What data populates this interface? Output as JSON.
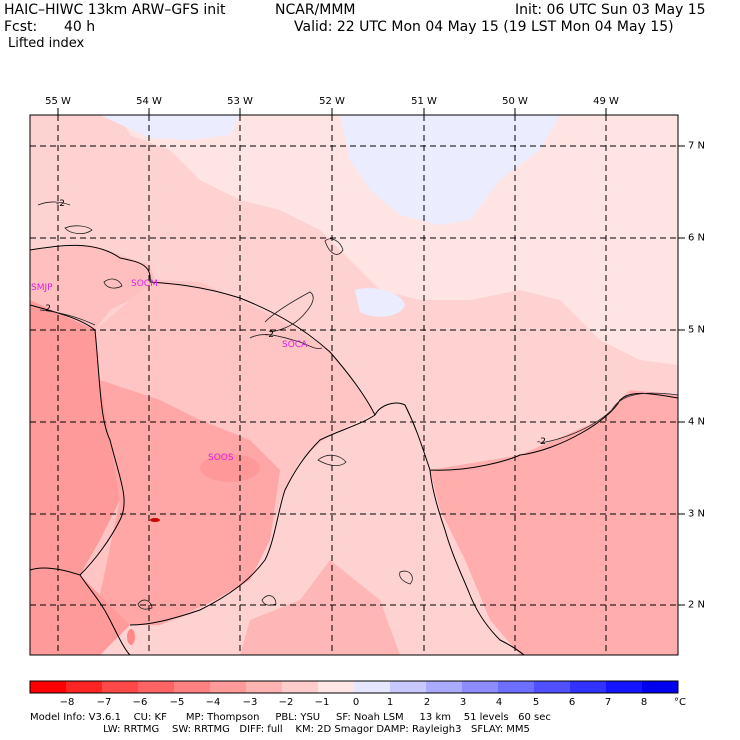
{
  "header": {
    "model": "HAIC–HIWC 13km ARW–GFS init",
    "org": "NCAR/MMM",
    "init": "Init: 06 UTC Sun 03 May 15",
    "fcst_label": "Fcst:",
    "fcst_value": "40 h",
    "valid": "Valid: 22 UTC Mon 04 May 15 (19 LST Mon 04 May 15)",
    "field": "Lifted index"
  },
  "map": {
    "lon_labels": [
      "55 W",
      "54 W",
      "53 W",
      "52 W",
      "51 W",
      "50 W",
      "49 W"
    ],
    "lat_labels": [
      "7 N",
      "6 N",
      "5 N",
      "4 N",
      "3 N",
      "2 N"
    ],
    "stations": [
      "SMJP",
      "SOCM",
      "SOCA",
      "SOOS"
    ],
    "contour_labels": [
      "-2",
      "-2",
      "-2",
      "-2"
    ]
  },
  "colorbar": {
    "ticks": [
      "−8",
      "−7",
      "−6",
      "−5",
      "−4",
      "−3",
      "−2",
      "−1",
      "0",
      "1",
      "2",
      "3",
      "4",
      "5",
      "6",
      "7",
      "8"
    ],
    "unit": "°C",
    "colors": [
      "#ff0000",
      "#ff2424",
      "#ff4848",
      "#ff6464",
      "#ff8080",
      "#ff9a9a",
      "#ffb4b4",
      "#ffcccc",
      "#ffe6e6",
      "#e6e6ff",
      "#c8c8ff",
      "#aaaaff",
      "#8c8cff",
      "#6e6eff",
      "#5050ff",
      "#3232ff",
      "#1414ff",
      "#0000ee"
    ]
  },
  "footer": {
    "line1": "Model Info: V3.6.1    CU: KF      MP: Thompson     PBL: YSU     SF: Noah LSM     13 km    51 levels   60 sec",
    "line2": "                       LW: RRTMG    SW: RRTMG   DIFF: full    KM: 2D Smagor DAMP: Rayleigh3   SFLAY: MM5"
  }
}
